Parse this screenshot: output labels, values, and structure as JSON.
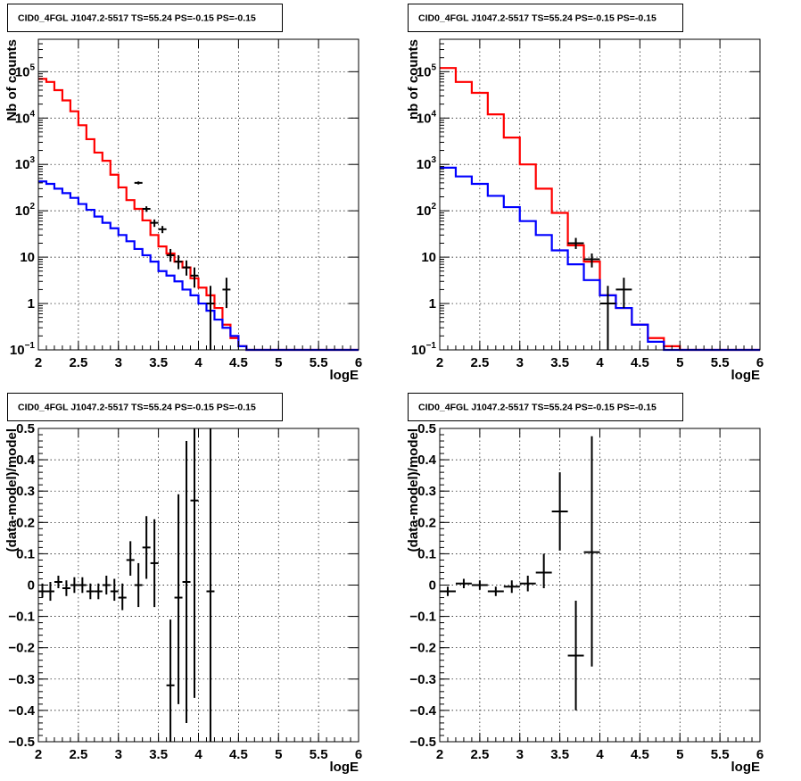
{
  "chart_data": [
    {
      "id": "tl",
      "type": "line",
      "title": "CID0_4FGL J1047.2-5517 TS=55.24 PS=-0.15 PS=-0.15",
      "xlabel": "logE",
      "ylabel": "Nb of counts",
      "log_y": true,
      "xlim": [
        2,
        6
      ],
      "ylim": [
        0.1,
        500000
      ],
      "x_ticks": [
        "2",
        "2.5",
        "3",
        "3.5",
        "4",
        "4.5",
        "5",
        "5.5",
        "6"
      ],
      "y_ticks": [
        {
          "v": 0.1,
          "base": "10",
          "exp": "−1"
        },
        {
          "v": 1,
          "label": "1"
        },
        {
          "v": 10,
          "label": "10"
        },
        {
          "v": 100,
          "base": "10",
          "exp": "2"
        },
        {
          "v": 1000,
          "base": "10",
          "exp": "3"
        },
        {
          "v": 10000,
          "base": "10",
          "exp": "4"
        },
        {
          "v": 100000,
          "base": "10",
          "exp": "5"
        }
      ],
      "grid": true,
      "bin_edges": [
        2.0,
        2.1,
        2.2,
        2.3,
        2.4,
        2.5,
        2.6,
        2.7,
        2.8,
        2.9,
        3.0,
        3.1,
        3.2,
        3.3,
        3.4,
        3.5,
        3.6,
        3.7,
        3.8,
        3.9,
        4.0,
        4.1,
        4.2,
        4.3,
        4.4,
        4.5,
        4.6,
        4.7,
        4.8,
        4.9,
        5.0,
        5.1,
        5.2,
        5.3,
        5.4,
        5.5,
        5.6,
        5.7,
        5.8,
        5.9,
        6.0
      ],
      "histograms": [
        {
          "color": "#ff0000",
          "values": [
            70000,
            60000,
            40000,
            24000,
            14000,
            7000,
            3500,
            1800,
            1200,
            600,
            320,
            170,
            110,
            62,
            30,
            17,
            12,
            8,
            6,
            3.5,
            2.2,
            1.5,
            0.8,
            0.35,
            0.18,
            0.12,
            0.1,
            0.1,
            0.1,
            0.1,
            0.1,
            0.1,
            0.1,
            0.1,
            0.1,
            0.1,
            0.1,
            0.1,
            0.1,
            0.1
          ]
        },
        {
          "color": "#0000ff",
          "values": [
            430,
            380,
            300,
            240,
            190,
            140,
            105,
            75,
            55,
            42,
            30,
            22,
            15,
            11,
            8,
            5,
            4,
            3,
            2,
            1.5,
            1.0,
            0.7,
            0.45,
            0.3,
            0.2,
            0.12,
            0.1,
            0.1,
            0.1,
            0.1,
            0.1,
            0.1,
            0.1,
            0.1,
            0.1,
            0.1,
            0.1,
            0.1,
            0.1,
            0.1
          ]
        }
      ],
      "points": [
        {
          "x": 3.25,
          "y": 400,
          "xerr": 0.05,
          "ylo": 370,
          "yhi": 430
        },
        {
          "x": 3.35,
          "y": 110,
          "xerr": 0.05,
          "ylo": 95,
          "yhi": 125
        },
        {
          "x": 3.45,
          "y": 55,
          "xerr": 0.05,
          "ylo": 45,
          "yhi": 65
        },
        {
          "x": 3.55,
          "y": 40,
          "xerr": 0.05,
          "ylo": 33,
          "yhi": 47
        },
        {
          "x": 3.65,
          "y": 11,
          "xerr": 0.05,
          "ylo": 8,
          "yhi": 15
        },
        {
          "x": 3.75,
          "y": 8,
          "xerr": 0.05,
          "ylo": 5.5,
          "yhi": 11
        },
        {
          "x": 3.85,
          "y": 6,
          "xerr": 0.05,
          "ylo": 4,
          "yhi": 8.5
        },
        {
          "x": 3.95,
          "y": 4,
          "xerr": 0.05,
          "ylo": 2.2,
          "yhi": 6
        },
        {
          "x": 4.15,
          "y": 1,
          "xerr": 0.05,
          "ylo": 0.1,
          "yhi": 2.4
        },
        {
          "x": 4.35,
          "y": 2,
          "xerr": 0.05,
          "ylo": 0.8,
          "yhi": 3.6
        }
      ]
    },
    {
      "id": "tr",
      "type": "line",
      "title": "CID0_4FGL J1047.2-5517 TS=55.24 PS=-0.15 PS=-0.15",
      "xlabel": "logE",
      "ylabel": "nb of counts",
      "log_y": true,
      "xlim": [
        2,
        6
      ],
      "ylim": [
        0.1,
        500000
      ],
      "x_ticks": [
        "2",
        "2.5",
        "3",
        "3.5",
        "4",
        "4.5",
        "5",
        "5.5",
        "6"
      ],
      "y_ticks": [
        {
          "v": 0.1,
          "base": "10",
          "exp": "−1"
        },
        {
          "v": 1,
          "label": "1"
        },
        {
          "v": 10,
          "label": "10"
        },
        {
          "v": 100,
          "base": "10",
          "exp": "2"
        },
        {
          "v": 1000,
          "base": "10",
          "exp": "3"
        },
        {
          "v": 10000,
          "base": "10",
          "exp": "4"
        },
        {
          "v": 100000,
          "base": "10",
          "exp": "5"
        }
      ],
      "grid": true,
      "bin_edges": [
        2.0,
        2.2,
        2.4,
        2.6,
        2.8,
        3.0,
        3.2,
        3.4,
        3.6,
        3.8,
        4.0,
        4.2,
        4.4,
        4.6,
        4.8,
        5.0,
        5.2,
        5.4,
        5.6,
        5.8,
        6.0
      ],
      "histograms": [
        {
          "color": "#ff0000",
          "values": [
            120000,
            60000,
            35000,
            12000,
            3800,
            1000,
            300,
            90,
            18,
            8,
            1.5,
            0.8,
            0.35,
            0.18,
            0.12,
            0.1,
            0.1,
            0.1,
            0.1,
            0.1
          ]
        },
        {
          "color": "#0000ff",
          "values": [
            850,
            550,
            380,
            210,
            120,
            60,
            30,
            14,
            7,
            3.2,
            1.5,
            0.8,
            0.35,
            0.15,
            0.1,
            0.1,
            0.1,
            0.1,
            0.1,
            0.1
          ]
        }
      ],
      "points": [
        {
          "x": 3.7,
          "y": 20,
          "xerr": 0.1,
          "ylo": 15,
          "yhi": 26
        },
        {
          "x": 3.9,
          "y": 9,
          "xerr": 0.1,
          "ylo": 6,
          "yhi": 12
        },
        {
          "x": 4.1,
          "y": 1,
          "xerr": 0.1,
          "ylo": 0.1,
          "yhi": 2.4
        },
        {
          "x": 4.3,
          "y": 2,
          "xerr": 0.1,
          "ylo": 0.8,
          "yhi": 3.6
        }
      ]
    },
    {
      "id": "bl",
      "type": "scatter",
      "title": "CID0_4FGL J1047.2-5517 TS=55.24 PS=-0.15 PS=-0.15",
      "xlabel": "logE",
      "ylabel": "(data-model)/model",
      "log_y": false,
      "xlim": [
        2,
        6
      ],
      "ylim": [
        -0.5,
        0.5
      ],
      "x_ticks": [
        "2",
        "2.5",
        "3",
        "3.5",
        "4",
        "4.5",
        "5",
        "5.5",
        "6"
      ],
      "y_ticks": [
        {
          "v": -0.5,
          "label": "−0.5"
        },
        {
          "v": -0.4,
          "label": "−0.4"
        },
        {
          "v": -0.3,
          "label": "−0.3"
        },
        {
          "v": -0.2,
          "label": "−0.2"
        },
        {
          "v": -0.1,
          "label": "−0.1"
        },
        {
          "v": 0,
          "label": "0"
        },
        {
          "v": 0.1,
          "label": "0.1"
        },
        {
          "v": 0.2,
          "label": "0.2"
        },
        {
          "v": 0.3,
          "label": "0.3"
        },
        {
          "v": 0.4,
          "label": "0.4"
        },
        {
          "v": 0.5,
          "label": "0.5"
        }
      ],
      "grid": true,
      "points": [
        {
          "x": 2.05,
          "y": -0.02,
          "xerr": 0.05,
          "ylo": -0.04,
          "yhi": 0.005
        },
        {
          "x": 2.15,
          "y": -0.02,
          "xerr": 0.05,
          "ylo": -0.05,
          "yhi": 0.01
        },
        {
          "x": 2.25,
          "y": 0.01,
          "xerr": 0.05,
          "ylo": -0.01,
          "yhi": 0.03
        },
        {
          "x": 2.35,
          "y": -0.01,
          "xerr": 0.05,
          "ylo": -0.035,
          "yhi": 0.015
        },
        {
          "x": 2.45,
          "y": 0.0,
          "xerr": 0.05,
          "ylo": -0.025,
          "yhi": 0.025
        },
        {
          "x": 2.55,
          "y": 0.0,
          "xerr": 0.05,
          "ylo": -0.025,
          "yhi": 0.025
        },
        {
          "x": 2.65,
          "y": -0.02,
          "xerr": 0.05,
          "ylo": -0.045,
          "yhi": 0.005
        },
        {
          "x": 2.75,
          "y": -0.02,
          "xerr": 0.05,
          "ylo": -0.045,
          "yhi": 0.005
        },
        {
          "x": 2.85,
          "y": 0.0,
          "xerr": 0.05,
          "ylo": -0.03,
          "yhi": 0.03
        },
        {
          "x": 2.95,
          "y": -0.02,
          "xerr": 0.05,
          "ylo": -0.05,
          "yhi": 0.02
        },
        {
          "x": 3.05,
          "y": -0.04,
          "xerr": 0.05,
          "ylo": -0.08,
          "yhi": 0.005
        },
        {
          "x": 3.15,
          "y": 0.08,
          "xerr": 0.05,
          "ylo": 0.03,
          "yhi": 0.14
        },
        {
          "x": 3.25,
          "y": 0.0,
          "xerr": 0.05,
          "ylo": -0.07,
          "yhi": 0.07
        },
        {
          "x": 3.35,
          "y": 0.12,
          "xerr": 0.05,
          "ylo": 0.02,
          "yhi": 0.22
        },
        {
          "x": 3.45,
          "y": 0.07,
          "xerr": 0.05,
          "ylo": -0.07,
          "yhi": 0.21
        },
        {
          "x": 3.65,
          "y": -0.32,
          "xerr": 0.05,
          "ylo": -0.5,
          "yhi": -0.11
        },
        {
          "x": 3.75,
          "y": -0.04,
          "xerr": 0.05,
          "ylo": -0.38,
          "yhi": 0.29
        },
        {
          "x": 3.85,
          "y": 0.01,
          "xerr": 0.05,
          "ylo": -0.44,
          "yhi": 0.46
        },
        {
          "x": 3.95,
          "y": 0.27,
          "xerr": 0.05,
          "ylo": -0.36,
          "yhi": 0.5
        },
        {
          "x": 4.15,
          "y": -0.02,
          "xerr": 0.05,
          "ylo": -0.5,
          "yhi": 0.5
        }
      ]
    },
    {
      "id": "br",
      "type": "scatter",
      "title": "CID0_4FGL J1047.2-5517 TS=55.24 PS=-0.15 PS=-0.15",
      "xlabel": "logE",
      "ylabel": "(data-model)/model",
      "log_y": false,
      "xlim": [
        2,
        6
      ],
      "ylim": [
        -0.5,
        0.5
      ],
      "x_ticks": [
        "2",
        "2.5",
        "3",
        "3.5",
        "4",
        "4.5",
        "5",
        "5.5",
        "6"
      ],
      "y_ticks": [
        {
          "v": -0.5,
          "label": "−0.5"
        },
        {
          "v": -0.4,
          "label": "−0.4"
        },
        {
          "v": -0.3,
          "label": "−0.3"
        },
        {
          "v": -0.2,
          "label": "−0.2"
        },
        {
          "v": -0.1,
          "label": "−0.1"
        },
        {
          "v": 0,
          "label": "0"
        },
        {
          "v": 0.1,
          "label": "0.1"
        },
        {
          "v": 0.2,
          "label": "0.2"
        },
        {
          "v": 0.3,
          "label": "0.3"
        },
        {
          "v": 0.4,
          "label": "0.4"
        },
        {
          "v": 0.5,
          "label": "0.5"
        }
      ],
      "grid": true,
      "points": [
        {
          "x": 2.1,
          "y": -0.02,
          "xerr": 0.1,
          "ylo": -0.035,
          "yhi": -0.005
        },
        {
          "x": 2.3,
          "y": 0.005,
          "xerr": 0.1,
          "ylo": -0.01,
          "yhi": 0.02
        },
        {
          "x": 2.5,
          "y": 0.0,
          "xerr": 0.1,
          "ylo": -0.015,
          "yhi": 0.015
        },
        {
          "x": 2.7,
          "y": -0.02,
          "xerr": 0.1,
          "ylo": -0.035,
          "yhi": -0.005
        },
        {
          "x": 2.9,
          "y": -0.005,
          "xerr": 0.1,
          "ylo": -0.025,
          "yhi": 0.015
        },
        {
          "x": 3.1,
          "y": 0.005,
          "xerr": 0.1,
          "ylo": -0.02,
          "yhi": 0.03
        },
        {
          "x": 3.3,
          "y": 0.04,
          "xerr": 0.1,
          "ylo": -0.01,
          "yhi": 0.1
        },
        {
          "x": 3.5,
          "y": 0.235,
          "xerr": 0.1,
          "ylo": 0.11,
          "yhi": 0.36
        },
        {
          "x": 3.7,
          "y": -0.225,
          "xerr": 0.1,
          "ylo": -0.4,
          "yhi": -0.05
        },
        {
          "x": 3.9,
          "y": 0.105,
          "xerr": 0.1,
          "ylo": -0.26,
          "yhi": 0.475
        }
      ]
    }
  ]
}
